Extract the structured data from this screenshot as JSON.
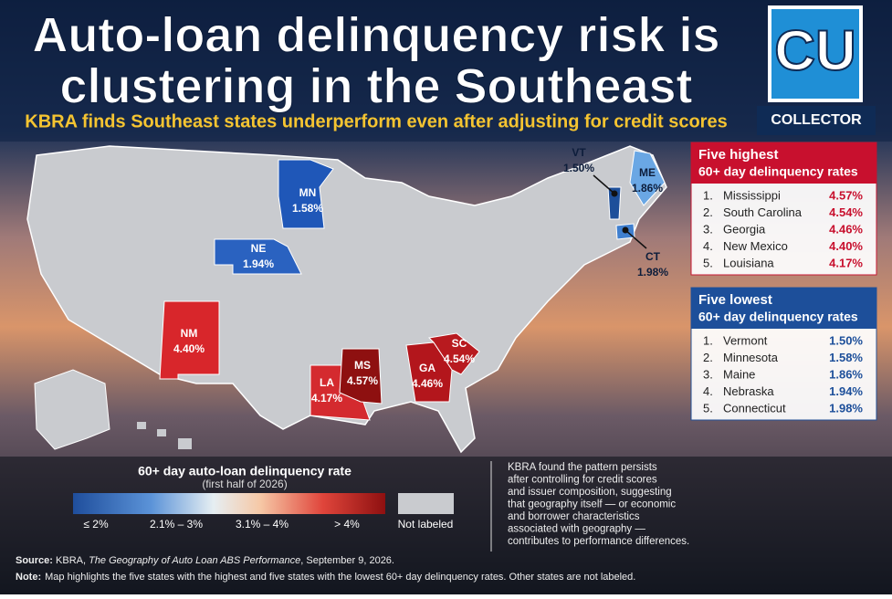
{
  "header": {
    "title_lines": [
      "Auto-loan delinquency risk is",
      "clustering in the Southeast"
    ],
    "subtitle": "KBRA finds Southeast states underperform even after adjusting for credit scores"
  },
  "logo": {
    "mark": "CU",
    "name": "COLLECTOR"
  },
  "map": {
    "states": [
      {
        "code": "MN",
        "rate": "1.58%"
      },
      {
        "code": "NE",
        "rate": "1.94%"
      },
      {
        "code": "NM",
        "rate": "4.40%"
      },
      {
        "code": "LA",
        "rate": "4.17%"
      },
      {
        "code": "MS",
        "rate": "4.57%"
      },
      {
        "code": "GA",
        "rate": "4.46%"
      },
      {
        "code": "SC",
        "rate": "4.54%"
      },
      {
        "code": "ME",
        "rate": "1.86%"
      },
      {
        "code": "VT",
        "rate": "1.50%"
      },
      {
        "code": "CT",
        "rate": "1.98%"
      }
    ]
  },
  "highest": {
    "title": "Five highest",
    "subtitle": "60+ day delinquency rates",
    "rows": [
      [
        "1.",
        "Mississippi",
        "4.57%"
      ],
      [
        "2.",
        "South Carolina",
        "4.54%"
      ],
      [
        "3.",
        "Georgia",
        "4.46%"
      ],
      [
        "4.",
        "New Mexico",
        "4.40%"
      ],
      [
        "5.",
        "Louisiana",
        "4.17%"
      ]
    ]
  },
  "lowest": {
    "title": "Five lowest",
    "subtitle": "60+ day delinquency rates",
    "rows": [
      [
        "1.",
        "Vermont",
        "1.50%"
      ],
      [
        "2.",
        "Minnesota",
        "1.58%"
      ],
      [
        "3.",
        "Maine",
        "1.86%"
      ],
      [
        "4.",
        "Nebraska",
        "1.94%"
      ],
      [
        "5.",
        "Connecticut",
        "1.98%"
      ]
    ]
  },
  "legend": {
    "title": "60+ day auto-loan delinquency rate",
    "subtitle": "(first half of 2026)",
    "labels": [
      "≤ 2%",
      "2.1% – 3%",
      "3.1% – 4%",
      "> 4%"
    ],
    "not_labeled": "Not labeled"
  },
  "note_text": [
    "KBRA found the pattern persists",
    "after controlling for credit scores",
    "and issuer composition, suggesting",
    "that geography itself — or economic",
    "and borrower characteristics",
    "associated with geography —",
    "contributes to performance differences."
  ],
  "footer": {
    "source_label": "Source:",
    "source_pre": "KBRA, ",
    "source_title": "The Geography of Auto Loan ABS Performance",
    "source_post": ", September 9, 2026.",
    "note_label": "Note:",
    "note": "Map highlights the five states with the highest and five states with the lowest 60+ day delinquency rates. Other states are not labeled."
  }
}
